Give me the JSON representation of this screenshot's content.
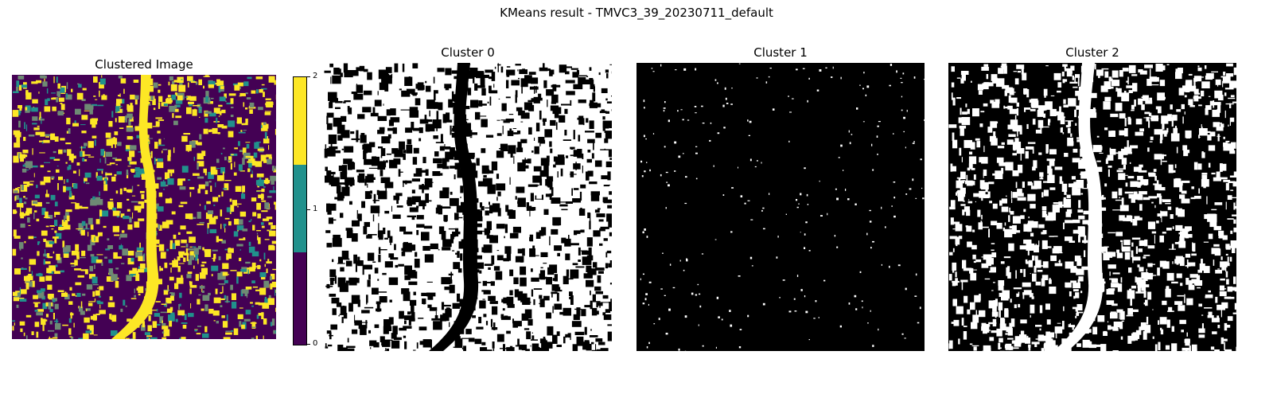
{
  "figure": {
    "suptitle": "KMeans result - TMVC3_39_20230711_default"
  },
  "panels": {
    "clustered": {
      "title": "Clustered Image"
    },
    "cluster0": {
      "title": "Cluster 0"
    },
    "cluster1": {
      "title": "Cluster 1"
    },
    "cluster2": {
      "title": "Cluster 2"
    }
  },
  "colorbar": {
    "ticks": [
      "0",
      "1",
      "2"
    ],
    "colors": [
      "#440154",
      "#21918c",
      "#fde725"
    ]
  },
  "palette": {
    "mask_on": "#ffffff",
    "mask_off": "#000000",
    "mixed": "#6e8a74"
  }
}
